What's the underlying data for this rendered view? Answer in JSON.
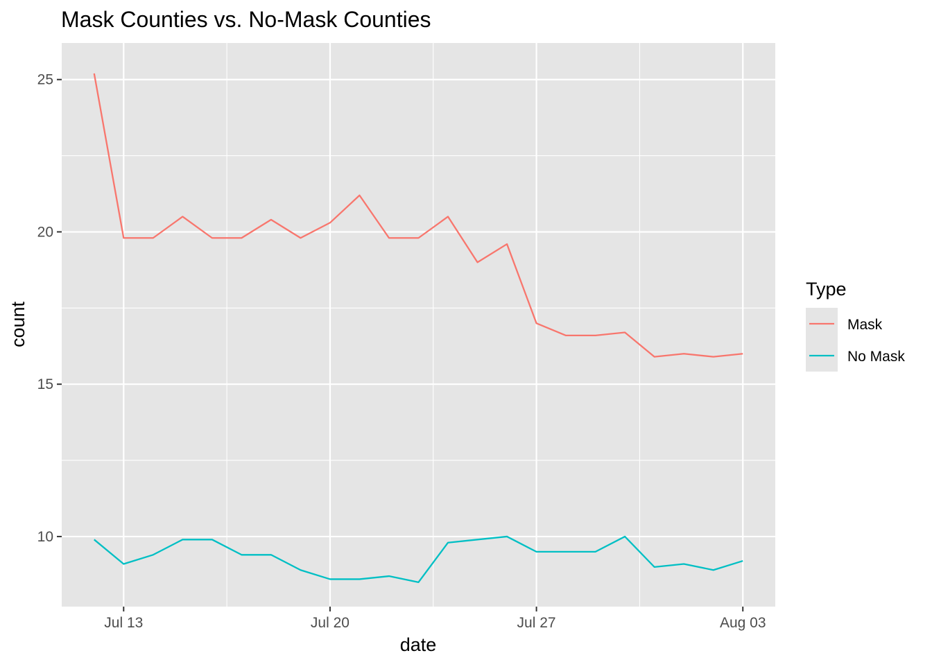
{
  "chart_data": {
    "type": "line",
    "title": "Mask Counties vs. No-Mask Counties",
    "xlabel": "date",
    "ylabel": "count",
    "x": [
      "2020-07-12",
      "2020-07-13",
      "2020-07-14",
      "2020-07-15",
      "2020-07-16",
      "2020-07-17",
      "2020-07-18",
      "2020-07-19",
      "2020-07-20",
      "2020-07-21",
      "2020-07-22",
      "2020-07-23",
      "2020-07-24",
      "2020-07-25",
      "2020-07-26",
      "2020-07-27",
      "2020-07-28",
      "2020-07-29",
      "2020-07-30",
      "2020-07-31",
      "2020-08-01",
      "2020-08-02",
      "2020-08-03"
    ],
    "series": [
      {
        "name": "Mask",
        "color": "#F8766D",
        "values": [
          25.2,
          19.8,
          19.8,
          20.5,
          19.8,
          19.8,
          20.4,
          19.8,
          20.3,
          21.2,
          19.8,
          19.8,
          20.5,
          19.0,
          19.6,
          17.0,
          16.6,
          16.6,
          16.7,
          15.9,
          16.0,
          15.9,
          16.0
        ]
      },
      {
        "name": "No Mask",
        "color": "#00BFC4",
        "values": [
          9.9,
          9.1,
          9.4,
          9.9,
          9.9,
          9.4,
          9.4,
          8.9,
          8.6,
          8.6,
          8.7,
          8.5,
          9.8,
          9.9,
          10.0,
          9.5,
          9.5,
          9.5,
          10.0,
          9.0,
          9.1,
          8.9,
          9.2
        ]
      }
    ],
    "xlim": [
      "2020-07-10.9",
      "2020-08-04.1"
    ],
    "x_ticks": [
      {
        "date": "2020-07-13",
        "label": "Jul 13"
      },
      {
        "date": "2020-07-20",
        "label": "Jul 20"
      },
      {
        "date": "2020-07-27",
        "label": "Jul 27"
      },
      {
        "date": "2020-08-03",
        "label": "Aug 03"
      }
    ],
    "x_minor_ticks": [
      "2020-07-16T12:00",
      "2020-07-23T12:00",
      "2020-07-30T12:00"
    ],
    "ylim": [
      7.7,
      26.2
    ],
    "y_ticks": [
      10,
      15,
      20,
      25
    ],
    "y_minor_ticks": [
      12.5,
      17.5,
      22.5
    ],
    "grid": true,
    "legend": {
      "title": "Type",
      "position": "right"
    },
    "theme": {
      "panel_background": "#E5E5E5",
      "grid_color": "#FFFFFF"
    }
  }
}
